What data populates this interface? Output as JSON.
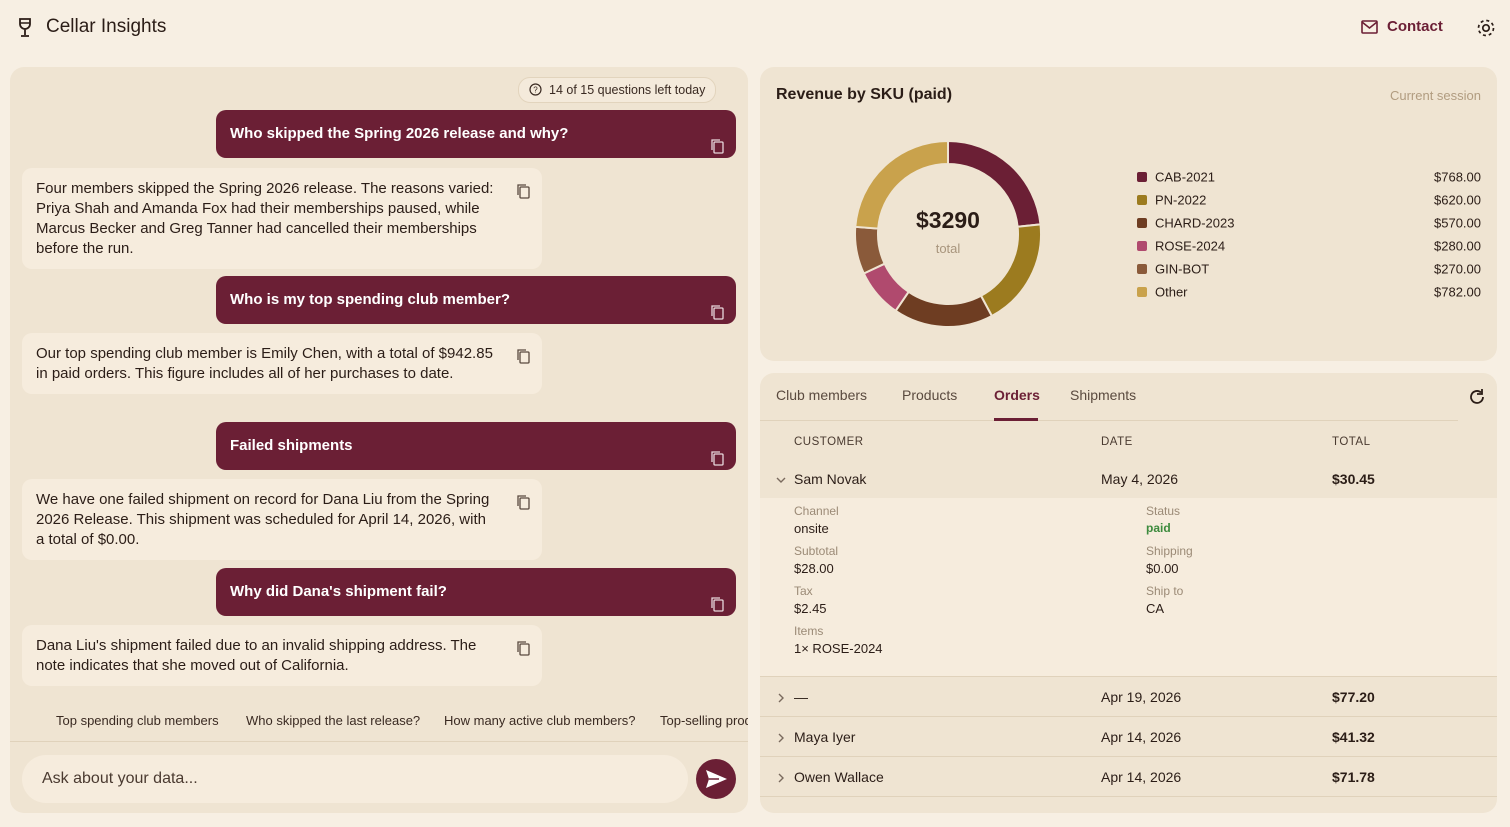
{
  "header": {
    "title": "Cellar Insights",
    "contact": "Contact"
  },
  "chat": {
    "quota": "14 of 15 questions left today",
    "messages": [
      {
        "role": "user",
        "text": "Who skipped the Spring 2026 release and why?"
      },
      {
        "role": "assistant",
        "text": "Four members skipped the Spring 2026 release. The reasons varied: Priya Shah and Amanda Fox had their memberships paused, while Marcus Becker and Greg Tanner had cancelled their memberships before the run."
      },
      {
        "role": "user",
        "text": "Who is my top spending club member?"
      },
      {
        "role": "assistant",
        "text": "Our top spending club member is Emily Chen, with a total of $942.85 in paid orders. This figure includes all of her purchases to date."
      },
      {
        "role": "user",
        "text": "Failed shipments"
      },
      {
        "role": "assistant",
        "text": "We have one failed shipment on record for Dana Liu from the Spring 2026 Release. This shipment was scheduled for April 14, 2026, with a total of $0.00."
      },
      {
        "role": "user",
        "text": "Why did Dana's shipment fail?"
      },
      {
        "role": "assistant",
        "text": "Dana Liu's shipment failed due to an invalid shipping address. The note indicates that she moved out of California."
      }
    ],
    "suggestions": [
      "Top spending club members",
      "Who skipped the last release?",
      "How many active club members?",
      "Top-selling products"
    ],
    "input_placeholder": "Ask about your data..."
  },
  "chart_data": {
    "type": "pie",
    "donut": true,
    "title": "Revenue by SKU (paid)",
    "subtitle": "Current session",
    "center_label": "$3290",
    "center_caption": "total",
    "categories": [
      "CAB-2021",
      "PN-2022",
      "CHARD-2023",
      "ROSE-2024",
      "GIN-BOT",
      "Other"
    ],
    "values": [
      768,
      620,
      570,
      280,
      270,
      782
    ],
    "value_labels": [
      "$768.00",
      "$620.00",
      "$570.00",
      "$280.00",
      "$270.00",
      "$782.00"
    ],
    "colors": [
      "#6b1f35",
      "#9c7b1f",
      "#6e3d22",
      "#b04a6e",
      "#8a5a3a",
      "#c9a24c"
    ],
    "legend": "right"
  },
  "data_panel": {
    "tabs": [
      "Club members",
      "Products",
      "Orders",
      "Shipments"
    ],
    "active_tab": "Orders",
    "table": {
      "columns": [
        "CUSTOMER",
        "DATE",
        "TOTAL"
      ],
      "rows": [
        [
          "Sam Novak",
          "May 4, 2026",
          "$30.45"
        ],
        [
          "—",
          "Apr 19, 2026",
          "$77.20"
        ],
        [
          "Maya Iyer",
          "Apr 14, 2026",
          "$41.32"
        ],
        [
          "Owen Wallace",
          "Apr 14, 2026",
          "$71.78"
        ]
      ],
      "expanded": {
        "fields": [
          {
            "label": "Channel",
            "value": "onsite"
          },
          {
            "label": "Status",
            "value": "paid"
          },
          {
            "label": "Subtotal",
            "value": "$28.00"
          },
          {
            "label": "Shipping",
            "value": "$0.00"
          },
          {
            "label": "Tax",
            "value": "$2.45"
          },
          {
            "label": "Ship to",
            "value": "CA"
          },
          {
            "label": "Items",
            "value": "1× ROSE-2024"
          }
        ]
      }
    }
  }
}
